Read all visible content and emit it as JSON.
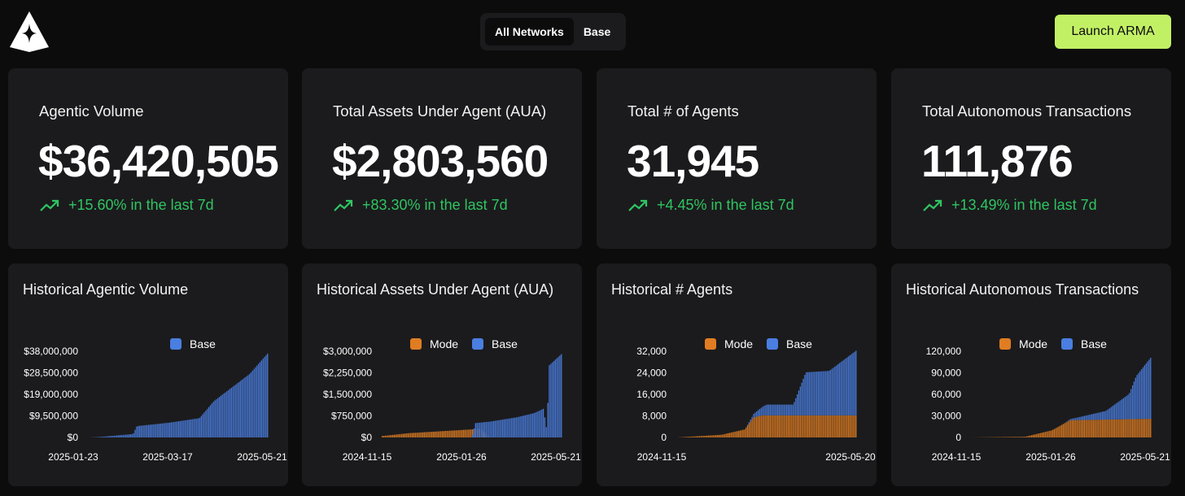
{
  "header": {
    "logo_name": "arma-logo",
    "networks": [
      {
        "label": "All Networks",
        "active": true
      },
      {
        "label": "Base",
        "active": false
      }
    ],
    "launch_label": "Launch ARMA"
  },
  "colors": {
    "accent": "#c2f065",
    "positive": "#2fc562",
    "mode": "#e07d22",
    "base": "#4a7ee0"
  },
  "stats": [
    {
      "label": "Agentic Volume",
      "value": "$36,420,505",
      "change": "+15.60% in the last 7d"
    },
    {
      "label": "Total Assets Under Agent (AUA)",
      "value": "$2,803,560",
      "change": "+83.30% in the last 7d"
    },
    {
      "label": "Total # of Agents",
      "value": "31,945",
      "change": "+4.45% in the last 7d"
    },
    {
      "label": "Total Autonomous Transactions",
      "value": "111,876",
      "change": "+13.49% in the last 7d"
    }
  ],
  "chart_data": [
    {
      "type": "bar",
      "title": "Historical Agentic Volume",
      "stacked": true,
      "legend": [
        "Base"
      ],
      "yticks": [
        "$38,000,000",
        "$28,500,000",
        "$19,000,000",
        "$9,500,000",
        "$0"
      ],
      "xticks": [
        "2025-01-23",
        "2025-03-17",
        "2025-05-21"
      ],
      "ylim": [
        0,
        38000000
      ],
      "series": [
        {
          "name": "Base",
          "anchors": [
            [
              0,
              0
            ],
            [
              0.06,
              200000
            ],
            [
              0.25,
              1500000
            ],
            [
              0.27,
              5000000
            ],
            [
              0.45,
              6500000
            ],
            [
              0.62,
              8500000
            ],
            [
              0.7,
              16000000
            ],
            [
              0.8,
              22000000
            ],
            [
              0.9,
              28000000
            ],
            [
              1.0,
              37000000
            ]
          ]
        }
      ]
    },
    {
      "type": "bar",
      "title": "Historical Assets Under Agent (AUA)",
      "stacked": false,
      "legend": [
        "Mode",
        "Base"
      ],
      "yticks": [
        "$3,000,000",
        "$2,250,000",
        "$1,500,000",
        "$750,000",
        "$0"
      ],
      "xticks": [
        "2024-11-15",
        "2025-01-26",
        "2025-05-21"
      ],
      "ylim": [
        0,
        3000000
      ],
      "series": [
        {
          "name": "Mode",
          "anchors": [
            [
              0,
              50000
            ],
            [
              0.15,
              150000
            ],
            [
              0.55,
              300000
            ],
            [
              0.6,
              0
            ],
            [
              1.0,
              0
            ]
          ]
        },
        {
          "name": "Base",
          "anchors": [
            [
              0,
              0
            ],
            [
              0.5,
              0
            ],
            [
              0.52,
              500000
            ],
            [
              0.6,
              550000
            ],
            [
              0.75,
              700000
            ],
            [
              0.85,
              850000
            ],
            [
              0.9,
              1000000
            ],
            [
              0.92,
              200000
            ],
            [
              0.93,
              2500000
            ],
            [
              1.0,
              2900000
            ]
          ]
        }
      ]
    },
    {
      "type": "bar",
      "title": "Historical # Agents",
      "stacked": true,
      "legend": [
        "Mode",
        "Base"
      ],
      "yticks": [
        "32,000",
        "24,000",
        "16,000",
        "8,000",
        "0"
      ],
      "xticks": [
        "2024-11-15",
        "2025-05-20"
      ],
      "ylim": [
        0,
        32000
      ],
      "series": [
        {
          "name": "Mode",
          "anchors": [
            [
              0,
              0
            ],
            [
              0.25,
              1000
            ],
            [
              0.38,
              3000
            ],
            [
              0.43,
              7500
            ],
            [
              0.48,
              8200
            ],
            [
              1.0,
              8200
            ]
          ]
        },
        {
          "name": "Base",
          "anchors": [
            [
              0,
              0
            ],
            [
              0.38,
              0
            ],
            [
              0.42,
              1000
            ],
            [
              0.5,
              4000
            ],
            [
              0.65,
              4000
            ],
            [
              0.72,
              16000
            ],
            [
              0.85,
              16500
            ],
            [
              1.0,
              24000
            ]
          ]
        }
      ]
    },
    {
      "type": "bar",
      "title": "Historical Autonomous Transactions",
      "stacked": true,
      "legend": [
        "Mode",
        "Base"
      ],
      "yticks": [
        "120,000",
        "90,000",
        "60,000",
        "30,000",
        "0"
      ],
      "xticks": [
        "2024-11-15",
        "2025-01-26",
        "2025-05-21"
      ],
      "ylim": [
        0,
        120000
      ],
      "series": [
        {
          "name": "Mode",
          "anchors": [
            [
              0,
              0
            ],
            [
              0.3,
              1000
            ],
            [
              0.45,
              10000
            ],
            [
              0.55,
              24000
            ],
            [
              1.0,
              26000
            ]
          ]
        },
        {
          "name": "Base",
          "anchors": [
            [
              0,
              0
            ],
            [
              0.52,
              0
            ],
            [
              0.6,
              4000
            ],
            [
              0.75,
              12000
            ],
            [
              0.88,
              35000
            ],
            [
              0.92,
              60000
            ],
            [
              1.0,
              85000
            ]
          ]
        }
      ]
    }
  ]
}
